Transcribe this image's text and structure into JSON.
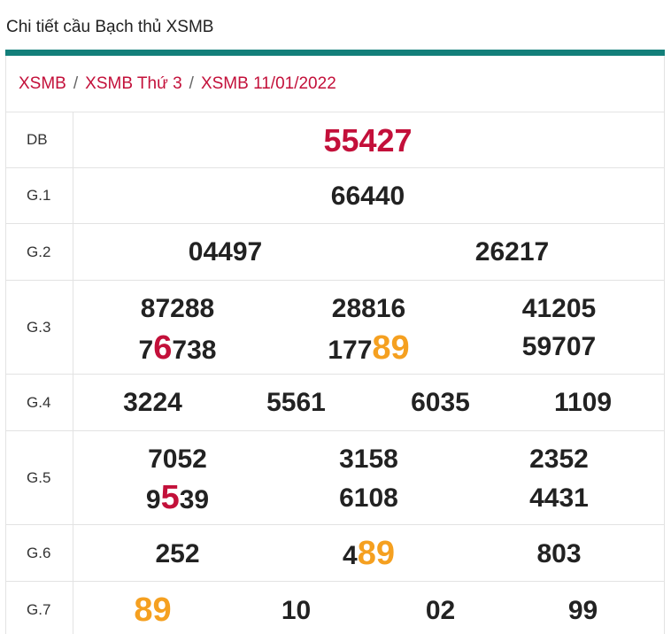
{
  "page_title": "Chi tiết cầu Bạch thủ XSMB",
  "breadcrumb": {
    "items": [
      "XSMB",
      "XSMB Thứ 3",
      "XSMB 11/01/2022"
    ],
    "separator": "/"
  },
  "colors": {
    "accent_teal": "#137f7a",
    "highlight_red": "#c3103a",
    "highlight_orange": "#f5a020"
  },
  "results": {
    "db": {
      "label": "DB",
      "values": [
        "55427"
      ]
    },
    "g1": {
      "label": "G.1",
      "values": [
        "66440"
      ]
    },
    "g2": {
      "label": "G.2",
      "values": [
        "04497",
        "26217"
      ]
    },
    "g3": {
      "label": "G.3",
      "values": [
        "87288",
        "28816",
        "41205",
        "76738",
        "17789",
        "59707"
      ]
    },
    "g4": {
      "label": "G.4",
      "values": [
        "3224",
        "5561",
        "6035",
        "1109"
      ]
    },
    "g5": {
      "label": "G.5",
      "values": [
        "7052",
        "3158",
        "2352",
        "9539",
        "6108",
        "4431"
      ]
    },
    "g6": {
      "label": "G.6",
      "values": [
        "252",
        "489",
        "803"
      ]
    },
    "g7": {
      "label": "G.7",
      "values": [
        "89",
        "10",
        "02",
        "99"
      ]
    }
  },
  "highlighted_digits": {
    "g3_4": {
      "before": "7",
      "hl": "6",
      "after": "738",
      "color": "red"
    },
    "g3_5": {
      "before": "177",
      "hl": "89",
      "after": "",
      "color": "orange"
    },
    "g5_4": {
      "before": "9",
      "hl": "5",
      "after": "39",
      "color": "red"
    },
    "g6_2": {
      "before": "4",
      "hl": "89",
      "after": "",
      "color": "orange"
    },
    "g7_1": {
      "before": "",
      "hl": "89",
      "after": "",
      "color": "orange"
    }
  }
}
